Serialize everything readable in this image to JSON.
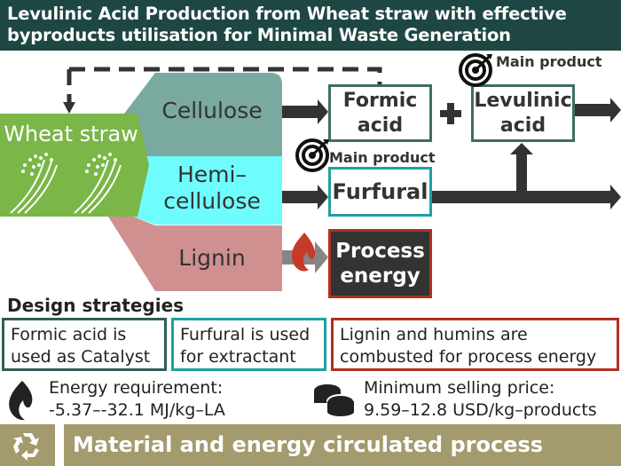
{
  "title": [
    "Levulinic Acid Production from Wheat straw with effective",
    "byproducts utilisation for Minimal Waste Generation"
  ],
  "feedstock": {
    "label": "Wheat straw",
    "icon": "wheat-icon"
  },
  "fractions": {
    "cellulose": "Cellulose",
    "hemicellulose": [
      "Hemi–",
      "cellulose"
    ],
    "lignin": "Lignin"
  },
  "products": {
    "formic_acid": [
      "Formic",
      "acid"
    ],
    "levulinic_acid": [
      "Levulinic",
      "acid"
    ],
    "furfural": "Furfural",
    "process_energy": [
      "Process",
      "energy"
    ],
    "plus": "+",
    "main_product_label": "Main product"
  },
  "design": {
    "heading": "Design strategies",
    "strategies": [
      [
        "Formic acid is",
        "used as Catalyst"
      ],
      [
        "Furfural is used",
        "for extractant"
      ],
      [
        "Lignin and humins are",
        "combusted for process energy"
      ]
    ]
  },
  "metrics": {
    "energy": {
      "label": "Energy requirement:",
      "value": "-5.37–-32.1 MJ/kg–LA",
      "icon": "flame-icon"
    },
    "price": {
      "label": "Minimum selling price:",
      "value": "9.59–12.8 USD/kg–products",
      "icon": "coins-icon"
    }
  },
  "footer": {
    "label": "Material and energy circulated process",
    "icon": "recycle-icon"
  },
  "colors": {
    "title_bg": "#1e4743",
    "wheat": "#7ab648",
    "cellulose": "#7aa9a0",
    "hemicellulose": "#6ffcfc",
    "lignin": "#d09090",
    "formic_border": "#3f6e66",
    "furfural_border": "#20a0a0",
    "energy_border": "#b03020",
    "footer_bg": "#a39a6e"
  }
}
